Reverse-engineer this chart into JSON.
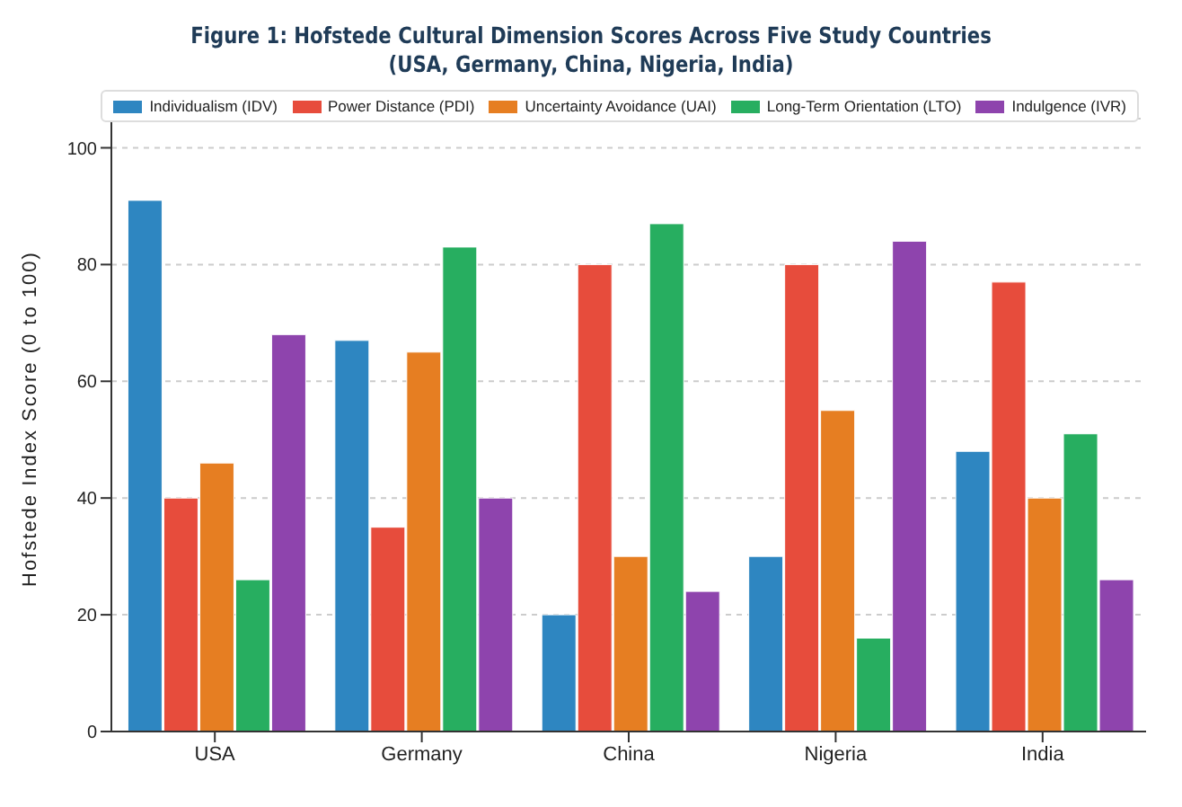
{
  "chart_data": {
    "type": "bar",
    "title": "Figure 1: Hofstede Cultural Dimension Scores Across Five Study Countries\n(USA, Germany, China, Nigeria, India)",
    "ylabel": "Hofstede Index Score (0 to 100)",
    "categories": [
      "USA",
      "Germany",
      "China",
      "Nigeria",
      "India"
    ],
    "series": [
      {
        "name": "Individualism (IDV)",
        "color": "#2e86c1",
        "values": [
          91,
          67,
          20,
          30,
          48
        ]
      },
      {
        "name": "Power Distance (PDI)",
        "color": "#e74c3c",
        "values": [
          40,
          35,
          80,
          80,
          77
        ]
      },
      {
        "name": "Uncertainty Avoidance (UAI)",
        "color": "#e67e22",
        "values": [
          46,
          65,
          30,
          55,
          40
        ]
      },
      {
        "name": "Long-Term Orientation (LTO)",
        "color": "#27ae60",
        "values": [
          26,
          83,
          87,
          16,
          51
        ]
      },
      {
        "name": "Indulgence (IVR)",
        "color": "#8e44ad",
        "values": [
          68,
          40,
          24,
          84,
          26
        ]
      }
    ],
    "ylim": [
      0,
      105
    ],
    "yticks": [
      0,
      20,
      40,
      60,
      80,
      100
    ],
    "grid": "y",
    "legend": "top right"
  }
}
